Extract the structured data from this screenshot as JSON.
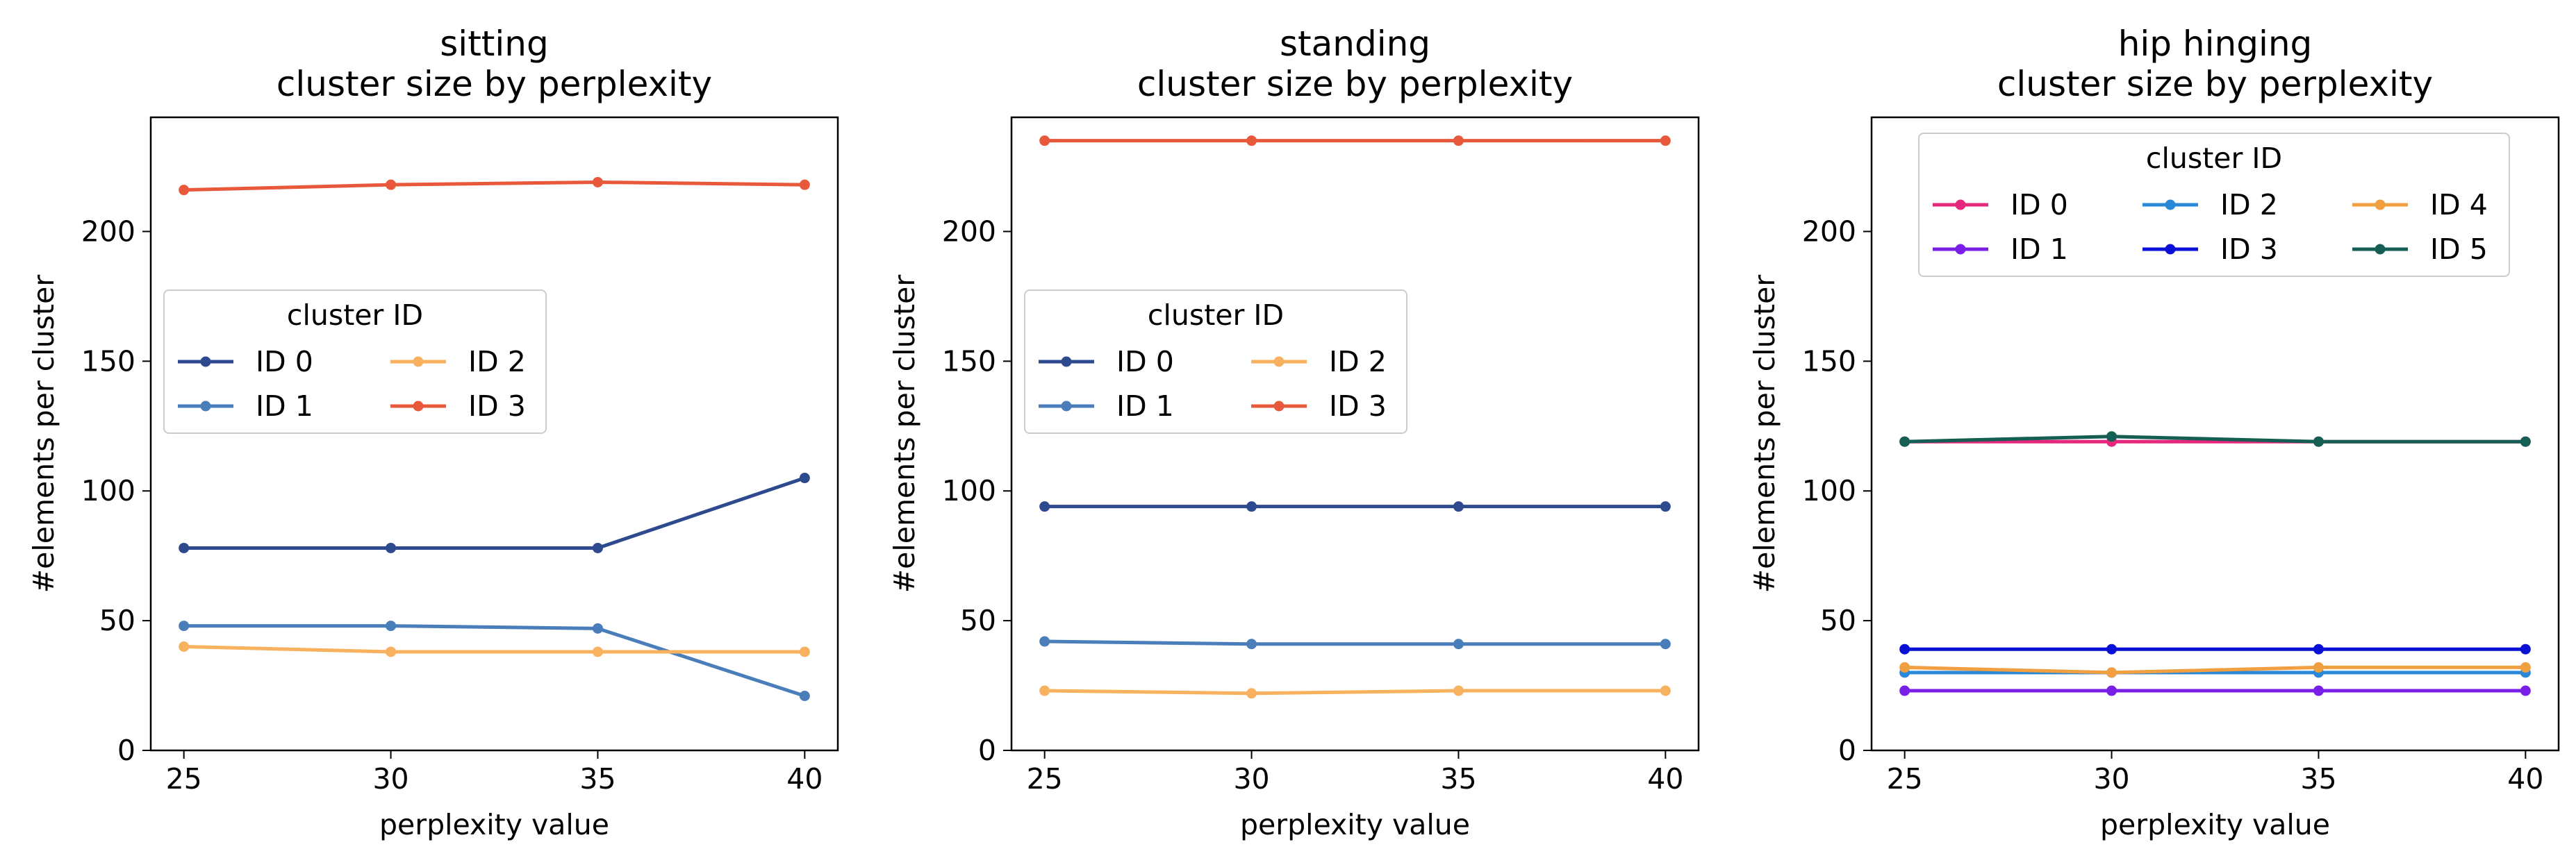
{
  "chart_data": [
    {
      "type": "line",
      "title": [
        "sitting",
        "cluster size by perplexity"
      ],
      "xlabel": "perplexity value",
      "ylabel": "#elements per cluster",
      "x": [
        25,
        30,
        35,
        40
      ],
      "xlim": [
        24.2,
        40.8
      ],
      "ylim": [
        0,
        244
      ],
      "yticks": [
        0,
        50,
        100,
        150,
        200
      ],
      "legend": {
        "title": "cluster ID",
        "placement": "center-left",
        "ncol": 2
      },
      "series": [
        {
          "name": "ID 0",
          "color": "#2e4a8f",
          "values": [
            78,
            78,
            78,
            105
          ]
        },
        {
          "name": "ID 1",
          "color": "#4a7ebb",
          "values": [
            48,
            48,
            47,
            21
          ]
        },
        {
          "name": "ID 2",
          "color": "#f8b15f",
          "values": [
            40,
            38,
            38,
            38
          ]
        },
        {
          "name": "ID 3",
          "color": "#e8583a",
          "values": [
            216,
            218,
            219,
            218
          ]
        }
      ]
    },
    {
      "type": "line",
      "title": [
        "standing",
        "cluster size by perplexity"
      ],
      "xlabel": "perplexity value",
      "ylabel": "#elements per cluster",
      "x": [
        25,
        30,
        35,
        40
      ],
      "xlim": [
        24.2,
        40.8
      ],
      "ylim": [
        0,
        244
      ],
      "yticks": [
        0,
        50,
        100,
        150,
        200
      ],
      "legend": {
        "title": "cluster ID",
        "placement": "center-left",
        "ncol": 2
      },
      "series": [
        {
          "name": "ID 0",
          "color": "#2e4a8f",
          "values": [
            94,
            94,
            94,
            94
          ]
        },
        {
          "name": "ID 1",
          "color": "#4a7ebb",
          "values": [
            42,
            41,
            41,
            41
          ]
        },
        {
          "name": "ID 2",
          "color": "#f8b15f",
          "values": [
            23,
            22,
            23,
            23
          ]
        },
        {
          "name": "ID 3",
          "color": "#e8583a",
          "values": [
            235,
            235,
            235,
            235
          ]
        }
      ]
    },
    {
      "type": "line",
      "title": [
        "hip hinging",
        "cluster size by perplexity"
      ],
      "xlabel": "perplexity value",
      "ylabel": "#elements per cluster",
      "x": [
        25,
        30,
        35,
        40
      ],
      "xlim": [
        24.2,
        40.8
      ],
      "ylim": [
        0,
        244
      ],
      "yticks": [
        0,
        50,
        100,
        150,
        200
      ],
      "legend": {
        "title": "cluster ID",
        "placement": "upper-center",
        "ncol": 3
      },
      "series": [
        {
          "name": "ID 0",
          "color": "#e6287c",
          "values": [
            119,
            119,
            119,
            119
          ]
        },
        {
          "name": "ID 1",
          "color": "#7a1fe6",
          "values": [
            23,
            23,
            23,
            23
          ]
        },
        {
          "name": "ID 2",
          "color": "#2a88d8",
          "values": [
            30,
            30,
            30,
            30
          ]
        },
        {
          "name": "ID 3",
          "color": "#0a10d6",
          "values": [
            39,
            39,
            39,
            39
          ]
        },
        {
          "name": "ID 4",
          "color": "#f0a040",
          "values": [
            32,
            30,
            32,
            32
          ]
        },
        {
          "name": "ID 5",
          "color": "#155e54",
          "values": [
            119,
            121,
            119,
            119
          ]
        }
      ]
    }
  ]
}
